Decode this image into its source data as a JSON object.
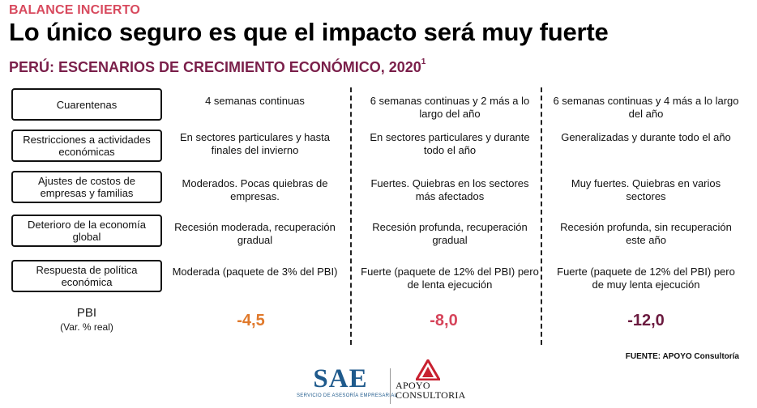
{
  "header": {
    "kicker": "BALANCE INCIERTO",
    "headline": "Lo único seguro es que el impacto será muy fuerte",
    "subtitle": "PERÚ: ESCENARIOS DE CRECIMIENTO ECONÓMICO, 2020",
    "subtitle_note": "1"
  },
  "rows": [
    {
      "label": "Cuarentenas",
      "s1": "4 semanas continuas",
      "s2": "6 semanas continuas y 2 más a lo largo del año",
      "s3": "6 semanas continuas y 4 más a lo largo del año"
    },
    {
      "label": "Restricciones a actividades económicas",
      "s1": "En sectores particulares y hasta finales del invierno",
      "s2": "En sectores particulares y durante todo el año",
      "s3": "Generalizadas y durante todo el año"
    },
    {
      "label": "Ajustes de costos de empresas y familias",
      "s1": "Moderados. Pocas quiebras de empresas.",
      "s2": "Fuertes. Quiebras en los sectores más afectados",
      "s3": "Muy fuertes. Quiebras en varios sectores"
    },
    {
      "label": "Deterioro de la economía global",
      "s1": "Recesión moderada, recuperación gradual",
      "s2": "Recesión profunda, recuperación gradual",
      "s3": "Recesión profunda, sin recuperación este año"
    },
    {
      "label": "Respuesta de política económica",
      "s1": "Moderada (paquete de 3% del PBI)",
      "s2": "Fuerte (paquete de 12% del PBI) pero de lenta ejecución",
      "s3": "Fuerte (paquete de 12% del PBI) pero de muy lenta ejecución"
    }
  ],
  "pbi": {
    "label": "PBI",
    "sublabel": "(Var. % real)",
    "values": [
      "-4,5",
      "-8,0",
      "-12,0"
    ],
    "colors": [
      "#e0792b",
      "#d6445a",
      "#6b1a3f"
    ]
  },
  "source": "FUENTE: APOYO Consultoría",
  "logos": {
    "sae": "SAE",
    "sae_tagline": "SERVICIO DE ASESORÍA EMPRESARIAL",
    "apoyo_line1": "APOYO",
    "apoyo_line2": "CONSULTORIA"
  },
  "colors": {
    "kicker": "#d84a5e",
    "subtitle": "#7a1f4a",
    "sae_blue": "#1f5a8c",
    "apoyo_red": "#c8202f"
  }
}
